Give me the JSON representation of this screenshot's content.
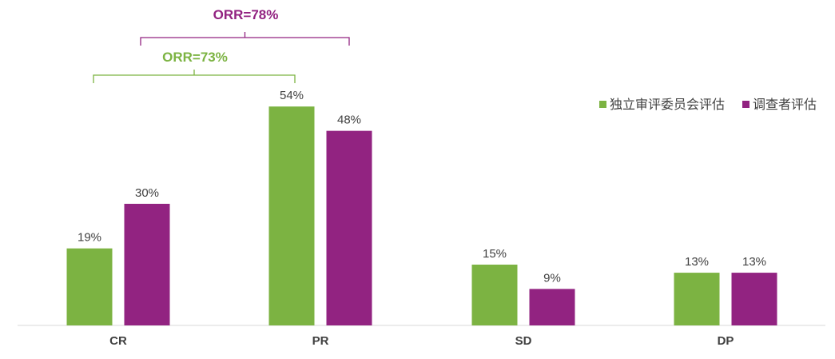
{
  "chart_data": {
    "type": "bar",
    "categories": [
      "CR",
      "PR",
      "SD",
      "DP"
    ],
    "series": [
      {
        "name": "独立审评委员会评估",
        "values": [
          19,
          54,
          15,
          13
        ],
        "color": "#7cb342"
      },
      {
        "name": "调查者评估",
        "values": [
          30,
          48,
          9,
          13
        ],
        "color": "#922381"
      }
    ],
    "value_suffix": "%",
    "ylim": [
      0,
      80
    ],
    "grid": false,
    "legend_position": "top-right",
    "annotations": [
      {
        "text": "ORR=78%",
        "series": 1,
        "color": "#922381",
        "categories": [
          "CR",
          "PR"
        ]
      },
      {
        "text": "ORR=73%",
        "series": 0,
        "color": "#7cb342",
        "categories": [
          "CR",
          "PR"
        ]
      }
    ]
  }
}
